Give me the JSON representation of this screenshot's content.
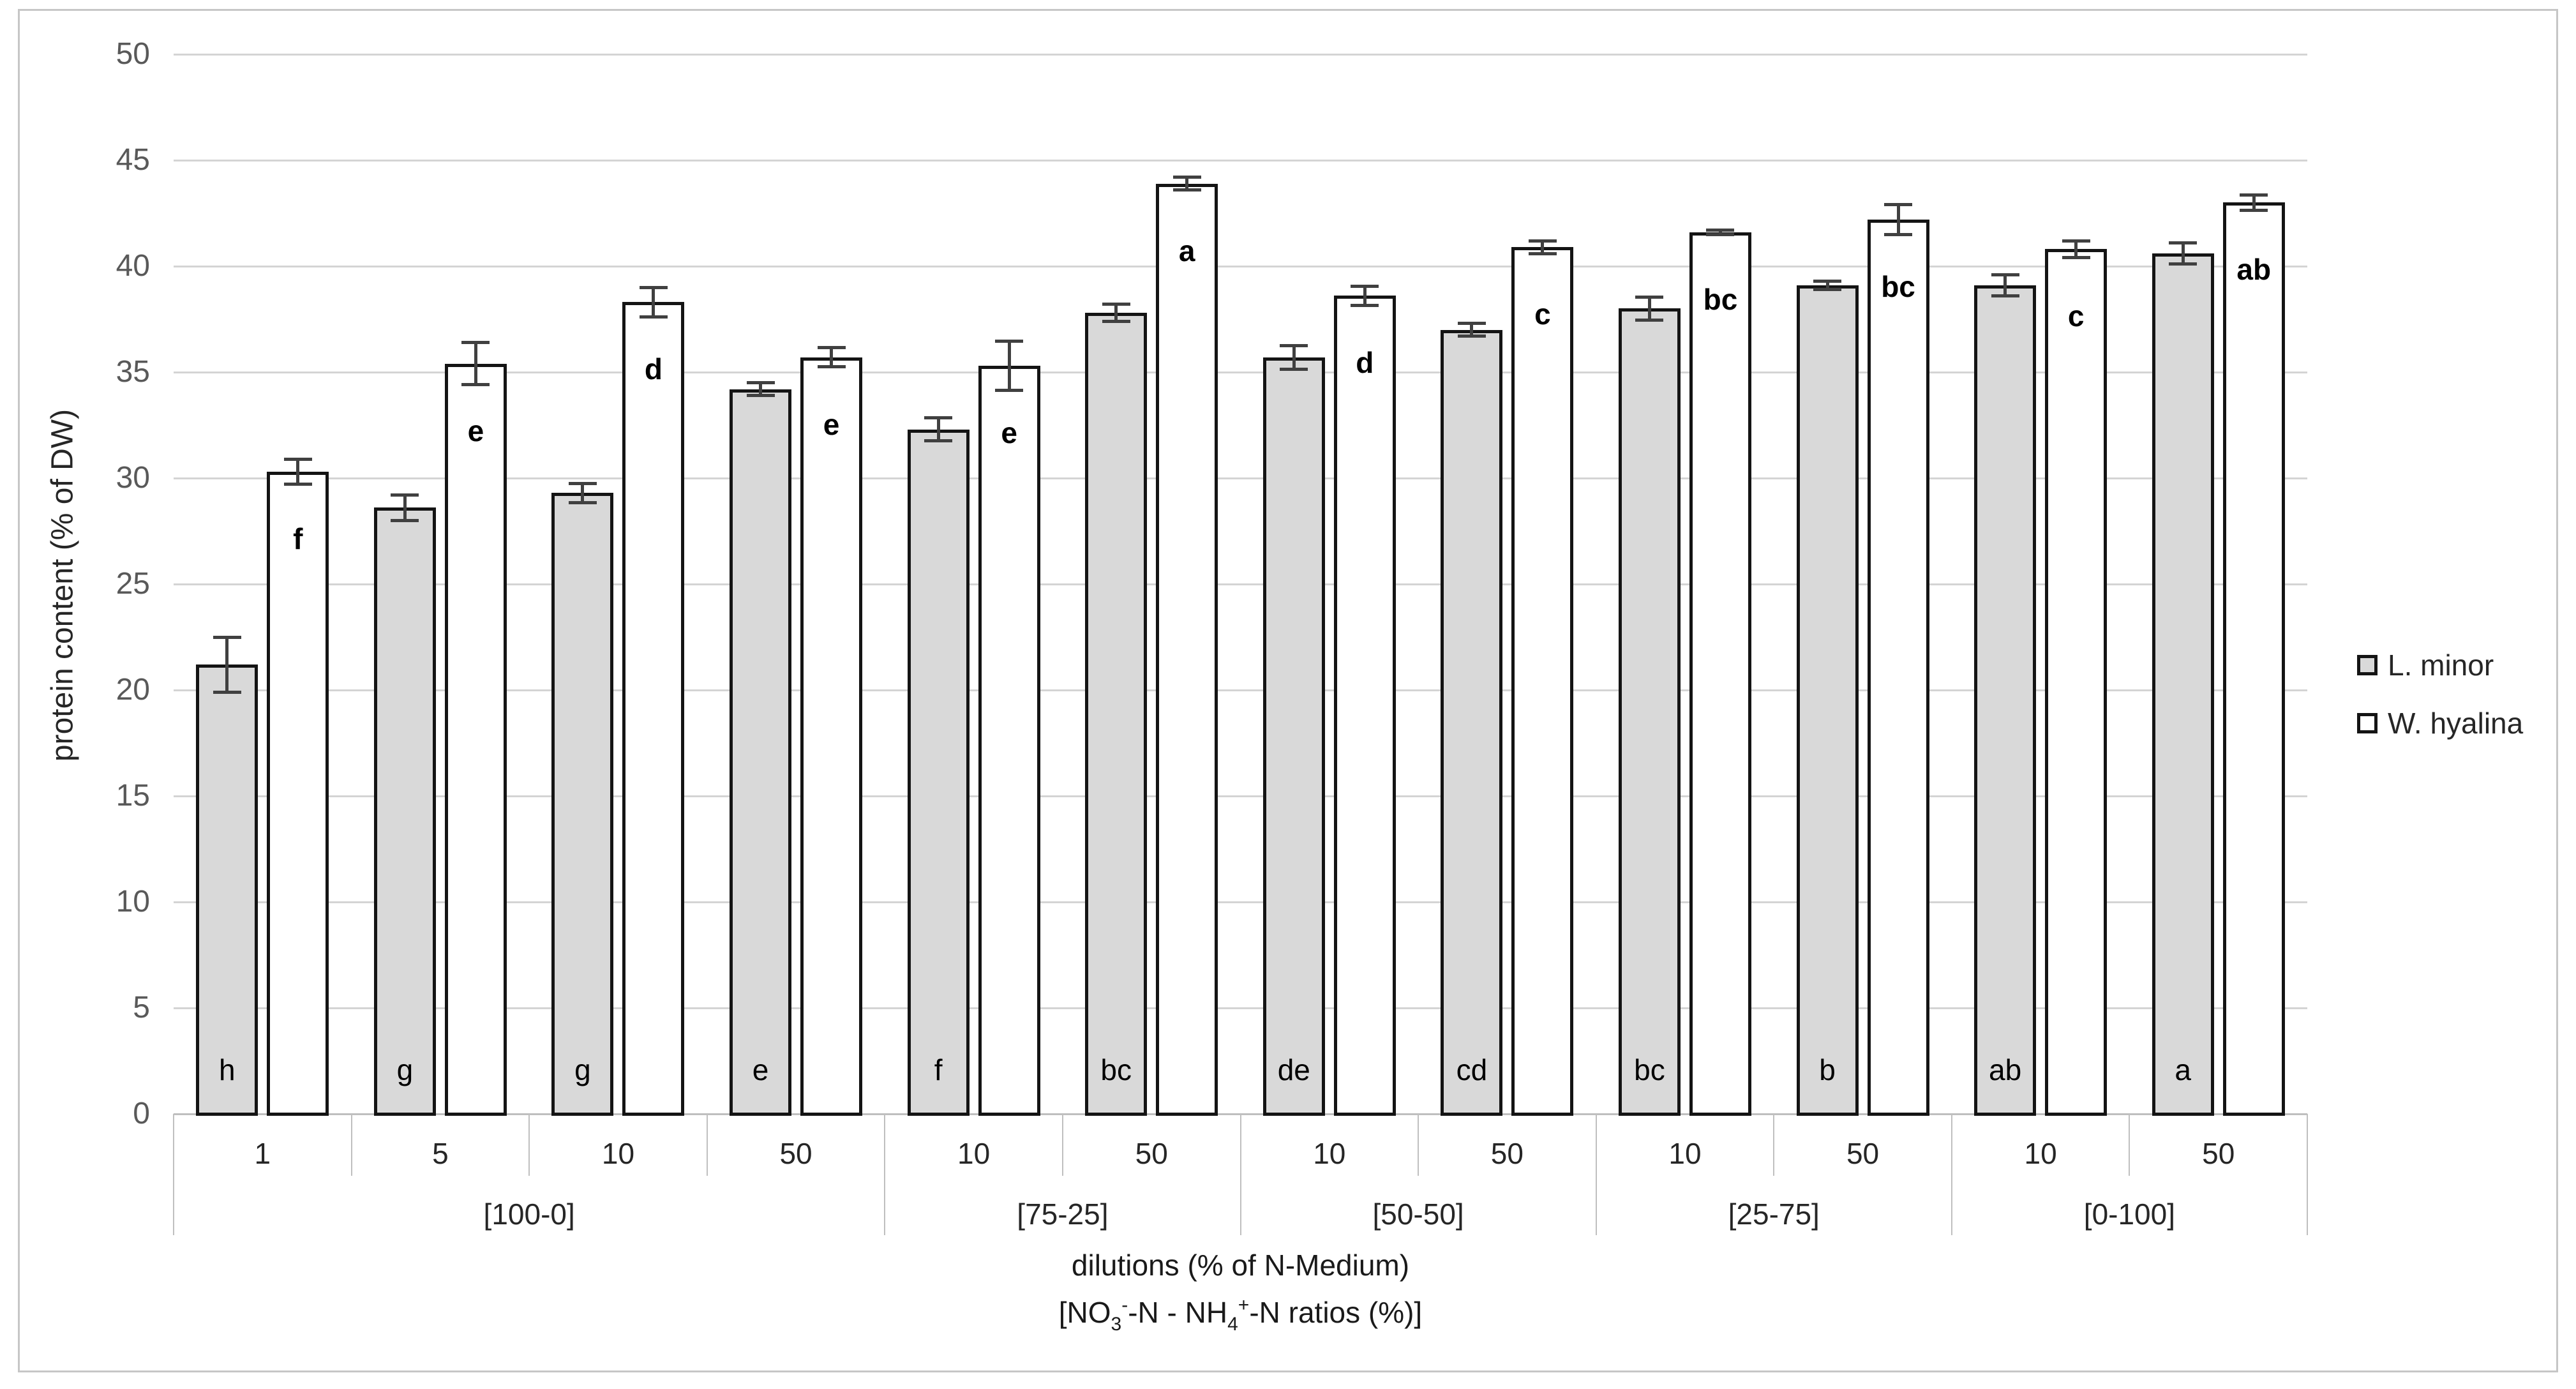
{
  "chart_data": {
    "type": "bar",
    "ylabel": "protein content (% of DW)",
    "xlabel_line1": "dilutions (% of N-Medium)",
    "xlabel_line2": "[NO3--N - NH4+-N ratios (%)]",
    "xlabel_line2_segments": [
      {
        "text": "[NO",
        "style": "normal"
      },
      {
        "text": "3",
        "style": "sub"
      },
      {
        "text": "-",
        "style": "sup"
      },
      {
        "text": "-N - NH",
        "style": "normal"
      },
      {
        "text": "4",
        "style": "sub"
      },
      {
        "text": "+",
        "style": "sup"
      },
      {
        "text": "-N ratios (%)]",
        "style": "normal"
      }
    ],
    "ylim": [
      0,
      50
    ],
    "ytick_interval": 5,
    "yticks": [
      0,
      5,
      10,
      15,
      20,
      25,
      30,
      35,
      40,
      45,
      50
    ],
    "grid": true,
    "legend_position": "right",
    "groups": [
      {
        "label": "[100-0]",
        "dilutions": [
          "1",
          "5",
          "10",
          "50"
        ]
      },
      {
        "label": "[75-25]",
        "dilutions": [
          "10",
          "50"
        ]
      },
      {
        "label": "[50-50]",
        "dilutions": [
          "10",
          "50"
        ]
      },
      {
        "label": "[25-75]",
        "dilutions": [
          "10",
          "50"
        ]
      },
      {
        "label": "[0-100]",
        "dilutions": [
          "10",
          "50"
        ]
      }
    ],
    "series": [
      {
        "name": "L. minor",
        "fill": "#d9d9d9",
        "values": [
          21.2,
          28.6,
          29.3,
          34.2,
          32.3,
          37.8,
          35.7,
          37.0,
          38.0,
          39.1,
          39.1,
          40.6
        ],
        "errors": [
          1.3,
          0.6,
          0.45,
          0.3,
          0.55,
          0.4,
          0.55,
          0.3,
          0.55,
          0.2,
          0.5,
          0.5
        ],
        "letters": [
          "h",
          "g",
          "g",
          "e",
          "f",
          "bc",
          "de",
          "cd",
          "bc",
          "b",
          "ab",
          "a"
        ]
      },
      {
        "name": "W. hyalina",
        "fill": "#ffffff",
        "values": [
          30.3,
          35.4,
          38.3,
          35.7,
          35.3,
          43.9,
          38.6,
          40.9,
          41.6,
          42.2,
          40.8,
          43.0
        ],
        "errors": [
          0.6,
          1.0,
          0.7,
          0.45,
          1.15,
          0.3,
          0.45,
          0.3,
          0.1,
          0.7,
          0.4,
          0.35
        ],
        "letters": [
          "f",
          "e",
          "d",
          "e",
          "e",
          "a",
          "d",
          "c",
          "bc",
          "bc",
          "c",
          "ab"
        ]
      }
    ],
    "colors": {
      "bar_border": "#141414",
      "error_bar": "#404040",
      "gridline": "#d4d4d4",
      "axis_line": "#bfbfbf",
      "ytick_text": "#595959"
    }
  }
}
